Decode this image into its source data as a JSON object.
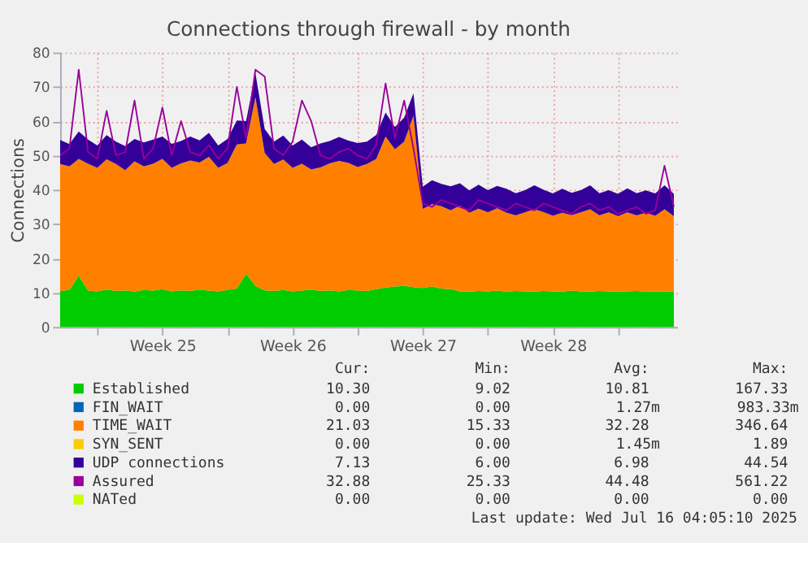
{
  "chart_data": {
    "type": "area",
    "title": "Connections through firewall - by month",
    "ylabel": "Connections",
    "stacked": true,
    "grid": true,
    "legend": "bottom",
    "x": [
      "2025-06-13T00:00",
      "2025-06-13T12:00",
      "2025-06-14T00:00",
      "2025-06-14T12:00",
      "2025-06-15T00:00",
      "2025-06-15T12:00",
      "2025-06-16T00:00",
      "2025-06-16T12:00",
      "2025-06-17T00:00",
      "2025-06-17T12:00",
      "2025-06-18T00:00",
      "2025-06-18T12:00",
      "2025-06-19T00:00",
      "2025-06-19T12:00",
      "2025-06-20T00:00",
      "2025-06-20T12:00",
      "2025-06-21T00:00",
      "2025-06-21T12:00",
      "2025-06-22T00:00",
      "2025-06-22T12:00",
      "2025-06-23T00:00",
      "2025-06-23T12:00",
      "2025-06-24T00:00",
      "2025-06-24T12:00",
      "2025-06-25T00:00",
      "2025-06-25T12:00",
      "2025-06-26T00:00",
      "2025-06-26T12:00",
      "2025-06-27T00:00",
      "2025-06-27T12:00",
      "2025-06-28T00:00",
      "2025-06-28T12:00",
      "2025-06-29T00:00",
      "2025-06-29T12:00",
      "2025-06-30T00:00",
      "2025-06-30T12:00",
      "2025-07-01T00:00",
      "2025-07-01T12:00",
      "2025-07-02T00:00",
      "2025-07-02T12:00",
      "2025-07-03T00:00",
      "2025-07-03T12:00",
      "2025-07-04T00:00",
      "2025-07-04T12:00",
      "2025-07-05T00:00",
      "2025-07-05T12:00",
      "2025-07-06T00:00",
      "2025-07-06T12:00",
      "2025-07-07T00:00",
      "2025-07-07T12:00",
      "2025-07-08T00:00",
      "2025-07-08T12:00",
      "2025-07-09T00:00",
      "2025-07-09T12:00",
      "2025-07-10T00:00",
      "2025-07-10T12:00",
      "2025-07-11T00:00",
      "2025-07-11T12:00",
      "2025-07-12T00:00",
      "2025-07-12T12:00",
      "2025-07-13T00:00",
      "2025-07-13T12:00",
      "2025-07-14T00:00",
      "2025-07-14T12:00",
      "2025-07-15T00:00",
      "2025-07-15T12:00",
      "2025-07-16T00:00"
    ],
    "xlim": [
      "2025-06-13T00:00",
      "2025-07-16T04:00"
    ],
    "xticks": [
      {
        "value": "2025-06-15T00:00",
        "label": null
      },
      {
        "value": "2025-06-18T12:00",
        "label": "Week 25"
      },
      {
        "value": "2025-06-22T00:00",
        "label": null
      },
      {
        "value": "2025-06-25T12:00",
        "label": "Week 26"
      },
      {
        "value": "2025-06-29T00:00",
        "label": null
      },
      {
        "value": "2025-07-02T12:00",
        "label": "Week 27"
      },
      {
        "value": "2025-07-06T00:00",
        "label": null
      },
      {
        "value": "2025-07-09T12:00",
        "label": "Week 28"
      },
      {
        "value": "2025-07-13T00:00",
        "label": null
      }
    ],
    "ylim": [
      0,
      80
    ],
    "yticks": [
      0,
      10,
      20,
      30,
      40,
      50,
      60,
      70,
      80
    ],
    "series": [
      {
        "name": "Established",
        "color": "#00cc00",
        "values": [
          10.5,
          10.8,
          15.0,
          10.6,
          10.4,
          10.9,
          10.5,
          10.7,
          10.3,
          10.8,
          10.6,
          11.0,
          10.4,
          10.7,
          10.5,
          10.9,
          10.6,
          10.4,
          10.8,
          11.2,
          15.5,
          12.0,
          10.7,
          10.5,
          10.8,
          10.4,
          10.6,
          10.9,
          10.5,
          10.7,
          10.4,
          10.8,
          10.6,
          10.5,
          11.0,
          11.5,
          11.8,
          12.0,
          11.6,
          11.4,
          11.8,
          11.2,
          11.0,
          10.4,
          10.3,
          10.5,
          10.4,
          10.6,
          10.3,
          10.5,
          10.4,
          10.3,
          10.5,
          10.4,
          10.3,
          10.6,
          10.4,
          10.3,
          10.5,
          10.4,
          10.3,
          10.4,
          10.5,
          10.3,
          10.4,
          10.3,
          10.3
        ]
      },
      {
        "name": "FIN_WAIT",
        "color": "#0066b3",
        "values": [
          null,
          null,
          null,
          null,
          null,
          null,
          null,
          null,
          null,
          null,
          null,
          null,
          null,
          null,
          null,
          null,
          null,
          null,
          null,
          null,
          null,
          null,
          null,
          null,
          null,
          null,
          null,
          null,
          null,
          null,
          null,
          null,
          null,
          null,
          null,
          null,
          null,
          null,
          null,
          null,
          null,
          null,
          null,
          null,
          null,
          null,
          null,
          null,
          null,
          null,
          null,
          null,
          null,
          null,
          null,
          null,
          null,
          null,
          null,
          null,
          null,
          null,
          null,
          null,
          null,
          null,
          null
        ]
      },
      {
        "name": "TIME_WAIT",
        "color": "#ff8000",
        "values": [
          37,
          36,
          34,
          37,
          36,
          38,
          37,
          35,
          38,
          36,
          37,
          38,
          36,
          37,
          38,
          37,
          39,
          36,
          37,
          42,
          38,
          55,
          40,
          37,
          38,
          36,
          37,
          35,
          36,
          37,
          38,
          37,
          36,
          37,
          38,
          44,
          40,
          42,
          50,
          23,
          24,
          24,
          23,
          25,
          23,
          24,
          23,
          24,
          23,
          22,
          23,
          24,
          23,
          22,
          23,
          22,
          23,
          24,
          22,
          23,
          22,
          23,
          22,
          23,
          22,
          24,
          22
        ]
      },
      {
        "name": "SYN_SENT",
        "color": "#ffcc00",
        "values": [
          null,
          null,
          null,
          null,
          null,
          null,
          null,
          null,
          null,
          null,
          null,
          null,
          null,
          null,
          null,
          null,
          null,
          null,
          null,
          null,
          null,
          null,
          null,
          null,
          null,
          null,
          null,
          null,
          null,
          null,
          null,
          null,
          null,
          null,
          null,
          null,
          null,
          null,
          null,
          null,
          null,
          null,
          null,
          null,
          null,
          null,
          null,
          null,
          null,
          null,
          null,
          null,
          null,
          null,
          null,
          null,
          null,
          null,
          null,
          null,
          null,
          null,
          null,
          null,
          null,
          null,
          null
        ]
      },
      {
        "name": "UDP connections",
        "color": "#330099",
        "values": [
          7,
          6.5,
          8,
          7,
          6.5,
          7,
          6.5,
          7,
          6.5,
          7,
          7,
          6.5,
          7,
          6.5,
          7,
          6.5,
          7,
          6.5,
          7,
          7,
          6.5,
          7,
          7,
          6.5,
          7,
          6.5,
          7,
          6.5,
          7,
          6.5,
          7,
          6.5,
          7,
          6.5,
          7,
          7,
          6.5,
          7,
          6.5,
          6.5,
          7,
          6.5,
          7,
          6.5,
          6.5,
          7,
          6.5,
          6.5,
          7,
          6.5,
          6.5,
          7,
          6.5,
          6.5,
          7,
          6.5,
          6.5,
          7,
          6.5,
          6.5,
          6.5,
          7,
          6.5,
          6.5,
          6.5,
          7,
          6.5
        ]
      },
      {
        "name": "Assured",
        "type": "line",
        "color": "#990099",
        "values": [
          50,
          52,
          75,
          51,
          49,
          63,
          50,
          51,
          66,
          49,
          52,
          64,
          50,
          60,
          51,
          50,
          53,
          49,
          52,
          70,
          55,
          75,
          73,
          52,
          50,
          54,
          66,
          60,
          50,
          49,
          51,
          52,
          50,
          49,
          53,
          71,
          55,
          66,
          52,
          36,
          35,
          37,
          36,
          35,
          34,
          37,
          36,
          35,
          34,
          36,
          35,
          34,
          36,
          35,
          34,
          33,
          35,
          36,
          34,
          35,
          33,
          34,
          35,
          33,
          34,
          47,
          35
        ]
      },
      {
        "name": "NATed",
        "type": "line",
        "color": "#ccff00",
        "values": [
          null,
          null,
          null,
          null,
          null,
          null,
          null,
          null,
          null,
          null,
          null,
          null,
          null,
          null,
          null,
          null,
          null,
          null,
          null,
          null,
          null,
          null,
          null,
          null,
          null,
          null,
          null,
          null,
          null,
          null,
          null,
          null,
          null,
          null,
          null,
          null,
          null,
          null,
          null,
          null,
          null,
          null,
          null,
          null,
          null,
          null,
          null,
          null,
          null,
          null,
          null,
          null,
          null,
          null,
          null,
          null,
          null,
          null,
          null,
          null,
          null,
          null,
          null,
          null,
          null,
          null,
          null
        ]
      }
    ],
    "annotations": [
      "Cur:",
      "Min:",
      "Avg:",
      "Max:",
      "10.30",
      "9.02",
      "10.81",
      "167.33",
      "0.00",
      "0.00",
      "1.27m",
      "983.33m",
      "21.03",
      "15.33",
      "32.28",
      "346.64",
      "0.00",
      "0.00",
      "1.45m",
      "1.89",
      "7.13",
      "6.00",
      "6.98",
      "44.54",
      "32.88",
      "25.33",
      "44.48",
      "561.22",
      "0.00",
      "0.00",
      "0.00",
      "0.00",
      "Last update: Wed Jul 16 04:05:10 2025"
    ]
  }
}
